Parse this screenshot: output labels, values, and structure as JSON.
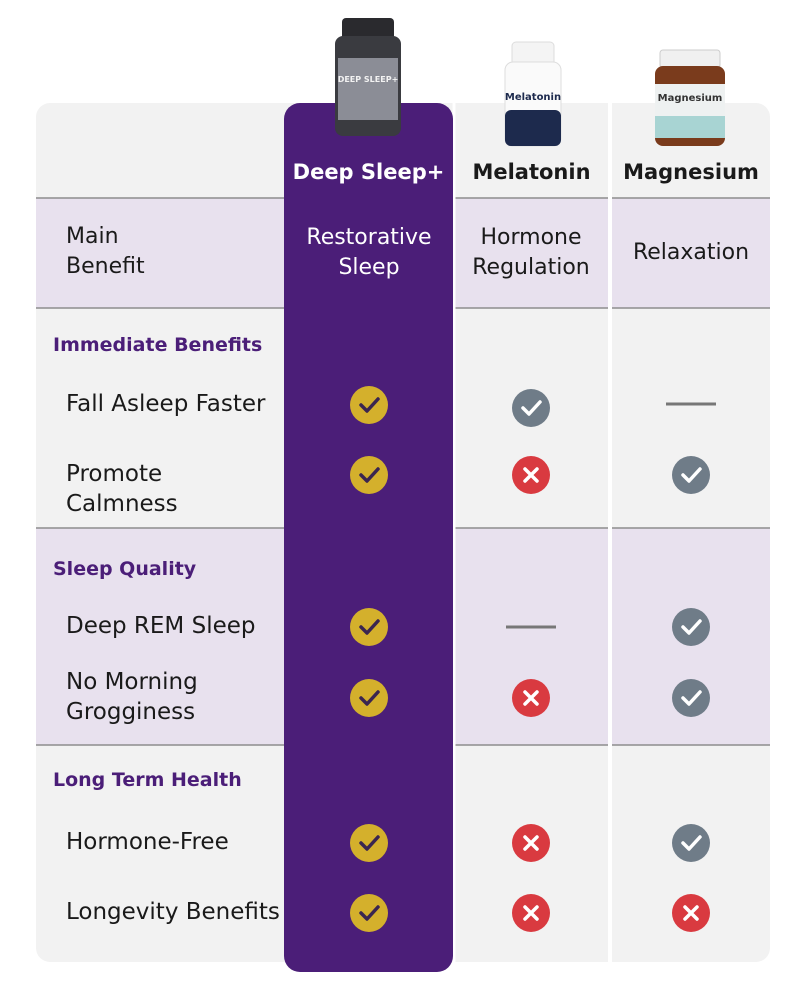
{
  "products": [
    {
      "name": "Deep Sleep+",
      "bottle_label": "DEEP SLEEP+"
    },
    {
      "name": "Melatonin",
      "bottle_label": "Melatonin"
    },
    {
      "name": "Magnesium",
      "bottle_label": "Magnesium"
    }
  ],
  "main_benefit": {
    "label": "Main Benefit",
    "values": [
      "Restorative Sleep",
      "Hormone Regulation",
      "Relaxation"
    ]
  },
  "sections": [
    {
      "title": "Immediate Benefits",
      "rows": [
        "Fall Asleep Faster",
        "Promote Calmness"
      ]
    },
    {
      "title": "Sleep Quality",
      "rows": [
        "Deep REM Sleep",
        "No Morning Grogginess"
      ]
    },
    {
      "title": "Long Term Health",
      "rows": [
        "Hormone-Free",
        "Longevity Benefits"
      ]
    }
  ]
}
